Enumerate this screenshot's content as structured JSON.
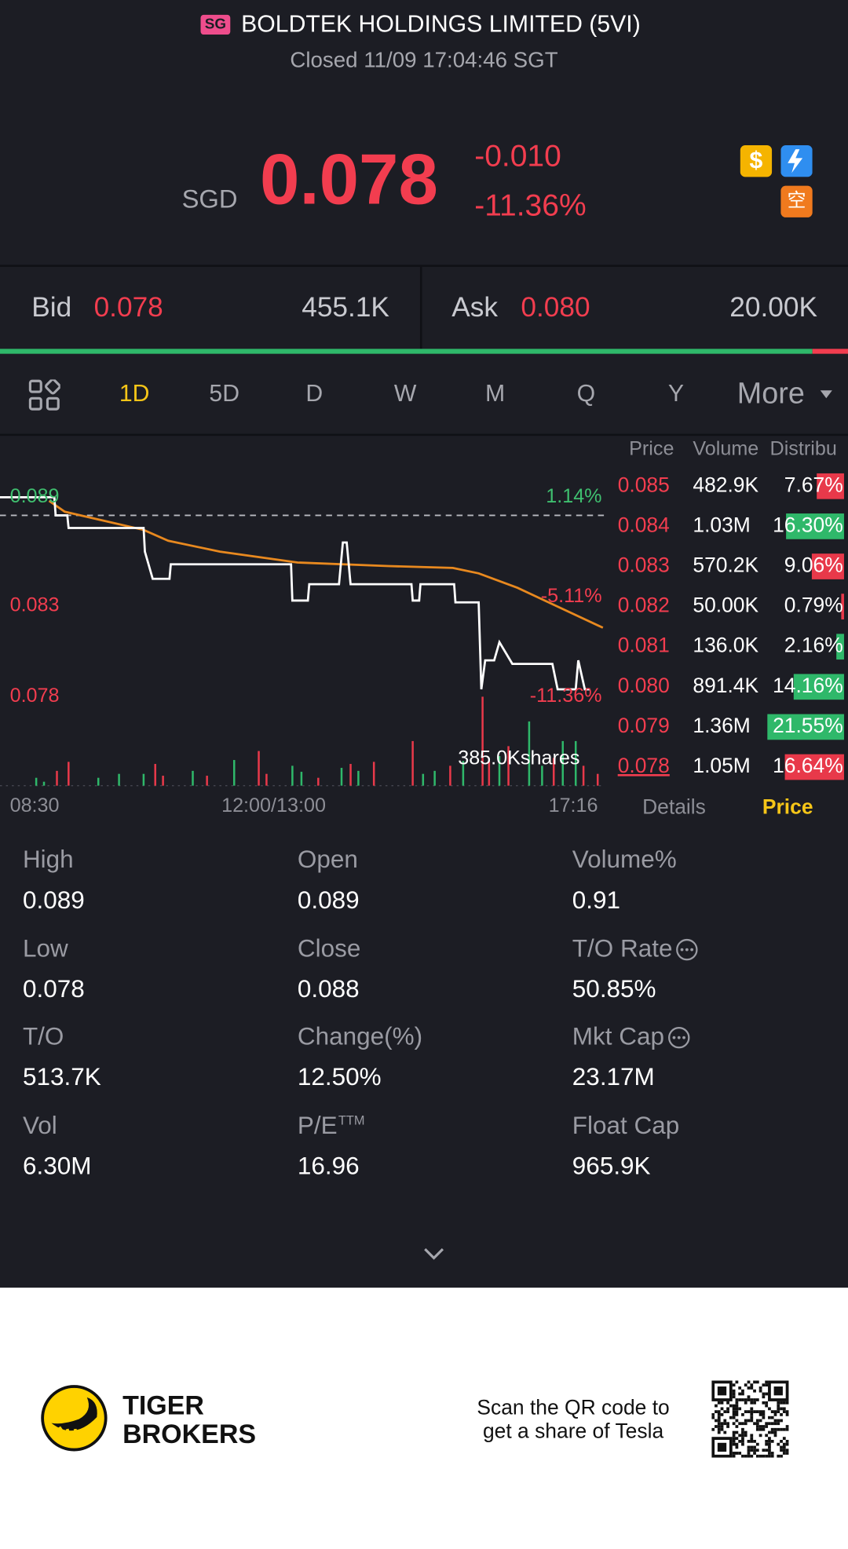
{
  "header": {
    "badge": "SG",
    "title": "BOLDTEK HOLDINGS LIMITED (5VI)",
    "status": "Closed 11/09 17:04:46 SGT"
  },
  "quote": {
    "currency": "SGD",
    "price": "0.078",
    "change": "-0.010",
    "change_pct": "-11.36%",
    "icons": [
      "$",
      "空"
    ],
    "bid_label": "Bid",
    "bid": "0.078",
    "bid_size": {
      "value": 455100,
      "label": "455.1K"
    },
    "ask_label": "Ask",
    "ask": "0.080",
    "ask_size": {
      "value": 20000,
      "label": "20.00K"
    },
    "bid_color": "#2fb86a",
    "ask_color": "#f23d4f"
  },
  "tabs": [
    "1D",
    "5D",
    "D",
    "W",
    "M",
    "Q",
    "Y",
    "More"
  ],
  "active_tab": 0,
  "chart_data": {
    "type": "line",
    "up_color": "#3fbf6f",
    "down_color": "#f23d4f",
    "xlim": [
      0,
      466
    ],
    "xticks": [
      {
        "value": 0,
        "label": "08:30"
      },
      {
        "value": 210,
        "label": "12:00/13:00"
      },
      {
        "value": 466,
        "label": "17:16"
      }
    ],
    "ylim": [
      0.0775,
      0.0895
    ],
    "yticks": [
      0.089,
      0.083,
      0.078
    ],
    "y2lim": [
      -11.93,
      1.7
    ],
    "y2ticks": [
      {
        "value": 1.14,
        "label": "1.14%"
      },
      {
        "value": -5.11,
        "label": "-5.11%"
      },
      {
        "value": -11.36,
        "label": "-11.36%"
      }
    ],
    "reference_line": 0.088,
    "series": [
      {
        "color": "#ffffff",
        "x": [
          0,
          42,
          43,
          52,
          53,
          111,
          112,
          118,
          131,
          132,
          225,
          226,
          238,
          239,
          262,
          265,
          268,
          271,
          318,
          319,
          324,
          325,
          351,
          352,
          370,
          372,
          375,
          382,
          386,
          396,
          427,
          431,
          445,
          447,
          452,
          456
        ],
        "values": [
          0.089,
          0.089,
          0.088,
          0.088,
          0.0873,
          0.0873,
          0.086,
          0.0845,
          0.0845,
          0.0853,
          0.0853,
          0.0833,
          0.0833,
          0.0842,
          0.0842,
          0.0865,
          0.0865,
          0.0842,
          0.0842,
          0.0833,
          0.0833,
          0.0842,
          0.0842,
          0.0832,
          0.0832,
          0.0784,
          0.08,
          0.08,
          0.081,
          0.0798,
          0.0798,
          0.0784,
          0.0784,
          0.08,
          0.0784,
          0.0784
        ]
      },
      {
        "color": "#e8891f",
        "x": [
          38,
          50,
          111,
          130,
          170,
          230,
          300,
          350,
          370,
          400,
          430,
          466
        ],
        "values": [
          0.0888,
          0.0882,
          0.0872,
          0.0866,
          0.086,
          0.0854,
          0.0852,
          0.0851,
          0.0848,
          0.084,
          0.083,
          0.0818
        ]
      }
    ],
    "volume": {
      "vlim": [
        0,
        400000
      ],
      "annotation": "385.0Kshares",
      "series": [
        {
          "color": "#2fb86a",
          "x": [
            28,
            34,
            76,
            92,
            111,
            149,
            181,
            226,
            233,
            264,
            277,
            327,
            336,
            358,
            386,
            409,
            419,
            435,
            445
          ],
          "values": [
            34000,
            17000,
            34000,
            51000,
            51000,
            64000,
            111000,
            86000,
            60000,
            77000,
            64000,
            51000,
            64000,
            107000,
            128000,
            278000,
            86000,
            193000,
            193000
          ]
        },
        {
          "color": "#e8394a",
          "x": [
            44,
            53,
            120,
            126,
            160,
            200,
            206,
            246,
            271,
            289,
            319,
            348,
            373,
            378,
            393,
            428,
            451,
            462
          ],
          "values": [
            64000,
            103000,
            94000,
            43000,
            43000,
            150000,
            51000,
            34000,
            94000,
            103000,
            193000,
            86000,
            385000,
            107000,
            171000,
            120000,
            86000,
            51000
          ]
        }
      ]
    }
  },
  "depth_table": {
    "headers": [
      "Price",
      "Volume",
      "Distribu"
    ],
    "rows": [
      {
        "price": "0.085",
        "volume": "482.9K",
        "pct": 7.67,
        "pct_label": "7.67%",
        "color": "#e8394a"
      },
      {
        "price": "0.084",
        "volume": "1.03M",
        "pct": 16.3,
        "pct_label": "16.30%",
        "color": "#2fb86a"
      },
      {
        "price": "0.083",
        "volume": "570.2K",
        "pct": 9.06,
        "pct_label": "9.06%",
        "color": "#e8394a"
      },
      {
        "price": "0.082",
        "volume": "50.00K",
        "pct": 0.79,
        "pct_label": "0.79%",
        "color": "#e8394a"
      },
      {
        "price": "0.081",
        "volume": "136.0K",
        "pct": 2.16,
        "pct_label": "2.16%",
        "color": "#2fb86a"
      },
      {
        "price": "0.080",
        "volume": "891.4K",
        "pct": 14.16,
        "pct_label": "14.16%",
        "color": "#2fb86a"
      },
      {
        "price": "0.079",
        "volume": "1.36M",
        "pct": 21.55,
        "pct_label": "21.55%",
        "color": "#2fb86a"
      },
      {
        "price": "0.078",
        "volume": "1.05M",
        "pct": 16.64,
        "pct_label": "16.64%",
        "color": "#e8394a"
      }
    ]
  },
  "panel_tabs": [
    "Details",
    "Price"
  ],
  "active_panel_tab": 1,
  "stats": [
    {
      "label": "High",
      "value": "0.089"
    },
    {
      "label": "Open",
      "value": "0.089"
    },
    {
      "label": "Volume%",
      "value": "0.91"
    },
    {
      "label": "Low",
      "value": "0.078"
    },
    {
      "label": "Close",
      "value": "0.088"
    },
    {
      "label": "T/O Rate",
      "value": "50.85%",
      "info": true
    },
    {
      "label": "T/O",
      "value": "513.7K"
    },
    {
      "label": "Change(%)",
      "value": "12.50%"
    },
    {
      "label": "Mkt Cap",
      "value": "23.17M",
      "info": true
    },
    {
      "label": "Vol",
      "value": "6.30M"
    },
    {
      "label": "P/E",
      "label_sup": "TTM",
      "value": "16.96"
    },
    {
      "label": "Float Cap",
      "value": "965.9K"
    }
  ],
  "footer": {
    "brand_line1": "TIGER",
    "brand_line2": "BROKERS",
    "promo_line1": "Scan the QR code to",
    "promo_line2": "get a share of Tesla"
  }
}
